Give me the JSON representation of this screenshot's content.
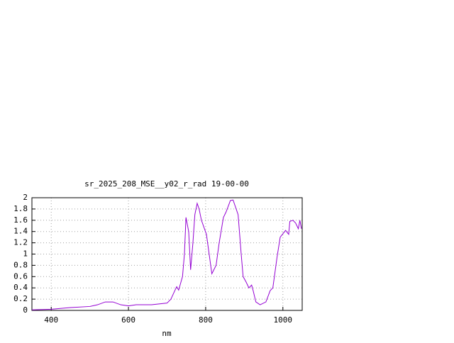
{
  "chart_data": {
    "type": "line",
    "title": "sr_2025_208_MSE__y02_r_rad 19-00-00",
    "x_label": "nm",
    "x": [
      350,
      400,
      450,
      500,
      520,
      540,
      560,
      580,
      600,
      620,
      660,
      700,
      710,
      720,
      725,
      730,
      740,
      745,
      749,
      756,
      761,
      767,
      772,
      778,
      783,
      789,
      802,
      816,
      827,
      835,
      846,
      853,
      864,
      871,
      884,
      892,
      897,
      905,
      912,
      919,
      923,
      930,
      941,
      956,
      967,
      974,
      985,
      993,
      1007,
      1015,
      1018,
      1026,
      1033,
      1040,
      1044,
      1048
    ],
    "values": [
      0.01,
      0.02,
      0.05,
      0.07,
      0.1,
      0.15,
      0.15,
      0.1,
      0.08,
      0.1,
      0.1,
      0.13,
      0.2,
      0.35,
      0.42,
      0.36,
      0.6,
      1.0,
      1.65,
      1.4,
      0.72,
      1.2,
      1.7,
      1.9,
      1.8,
      1.6,
      1.35,
      0.65,
      0.8,
      1.2,
      1.65,
      1.75,
      1.95,
      1.96,
      1.7,
      1.0,
      0.6,
      0.5,
      0.4,
      0.45,
      0.35,
      0.15,
      0.1,
      0.15,
      0.35,
      0.4,
      0.95,
      1.3,
      1.42,
      1.35,
      1.58,
      1.6,
      1.55,
      1.45,
      1.6,
      1.45
    ],
    "color": "#9400d3",
    "xlim": [
      350,
      1050
    ],
    "xticks": [
      400,
      600,
      800,
      1000
    ],
    "ylim": [
      0,
      2
    ],
    "yticks": [
      0,
      0.2,
      0.4,
      0.6,
      0.8,
      1,
      1.2,
      1.4,
      1.6,
      1.8,
      2
    ],
    "grid": true
  }
}
